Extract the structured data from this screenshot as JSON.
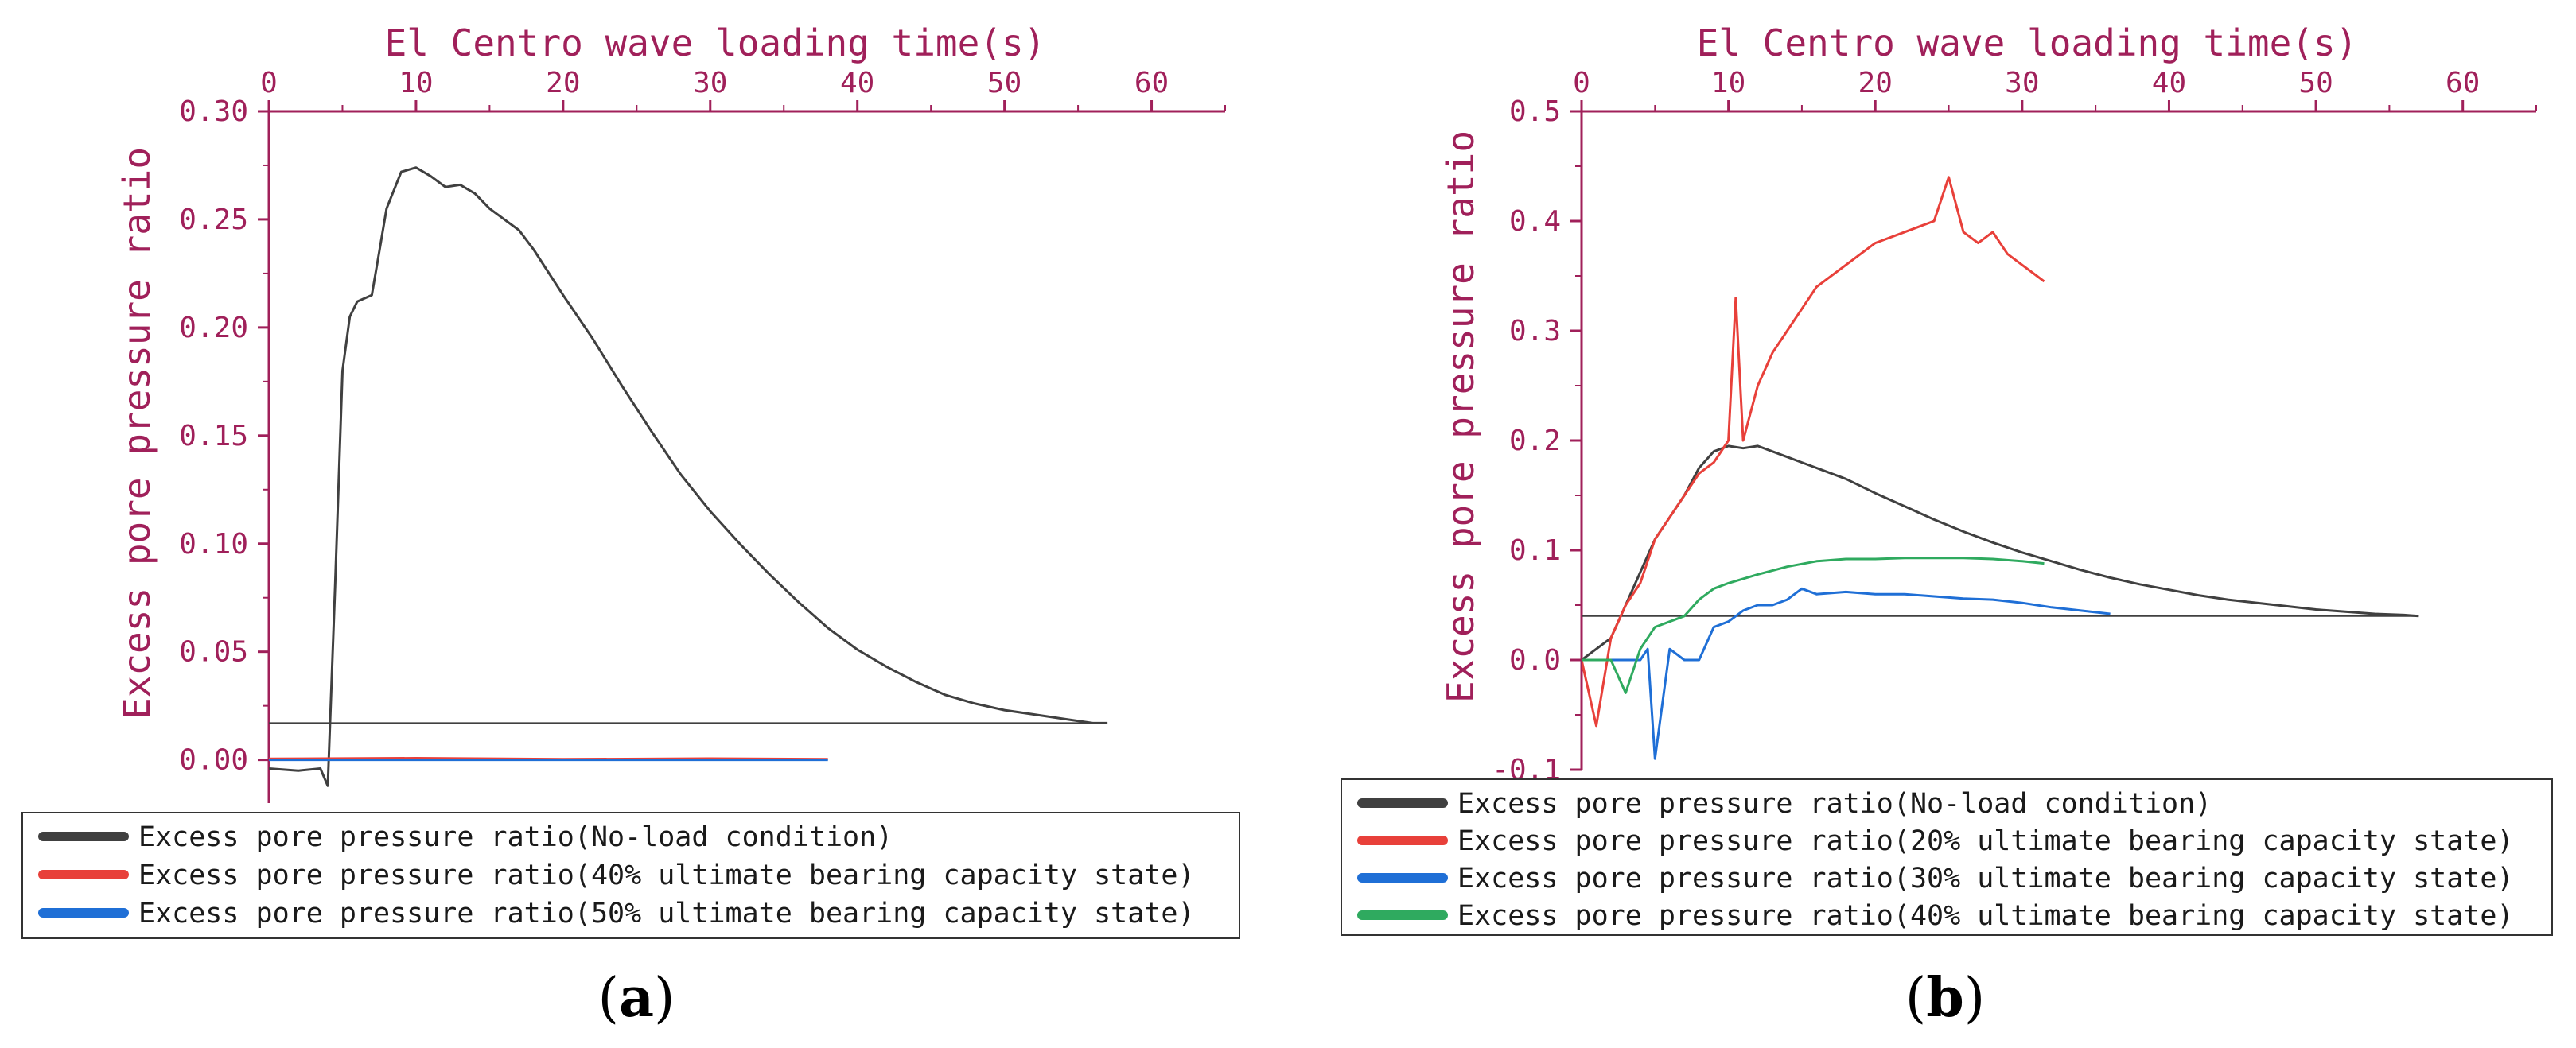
{
  "colors": {
    "axis": "#a0205a",
    "no_load": "#404040",
    "red": "#e8403a",
    "blue": "#1f6fd6",
    "green": "#2faa5f"
  },
  "chart_data": [
    {
      "panel_label": "(a)",
      "type": "line",
      "xlabel": "El Centro wave loading time(s)",
      "ylabel": "Excess pore pressure ratio",
      "xlim": [
        0,
        65
      ],
      "ylim": [
        -0.02,
        0.3
      ],
      "xticks": [
        "0",
        "10",
        "20",
        "30",
        "40",
        "50",
        "60"
      ],
      "yticks": [
        "0.00",
        "0.05",
        "0.10",
        "0.15",
        "0.20",
        "0.25",
        "0.30"
      ],
      "x_axis_position": "top",
      "legend_position": "bottom",
      "series": [
        {
          "name": "Excess pore pressure ratio(No-load condition)",
          "color_key": "no_load",
          "x": [
            0,
            2,
            3.5,
            4,
            4.5,
            5,
            5.5,
            6,
            7,
            7.5,
            8,
            9,
            10,
            11,
            12,
            13,
            14,
            15,
            16,
            17,
            18,
            20,
            22,
            24,
            26,
            28,
            30,
            32,
            34,
            36,
            38,
            40,
            42,
            44,
            46,
            48,
            50,
            52,
            54,
            56,
            57
          ],
          "y": [
            -0.004,
            -0.005,
            -0.004,
            -0.012,
            0.08,
            0.18,
            0.205,
            0.212,
            0.215,
            0.235,
            0.255,
            0.272,
            0.274,
            0.27,
            0.265,
            0.266,
            0.262,
            0.255,
            0.25,
            0.245,
            0.236,
            0.215,
            0.195,
            0.173,
            0.152,
            0.132,
            0.115,
            0.1,
            0.086,
            0.073,
            0.061,
            0.051,
            0.043,
            0.036,
            0.03,
            0.026,
            0.023,
            0.021,
            0.019,
            0.017,
            0.017
          ]
        },
        {
          "name": "Excess pore pressure ratio(40% ultimate bearing capacity state)",
          "color_key": "red",
          "x": [
            0,
            10,
            20,
            30,
            38
          ],
          "y": [
            0.0005,
            0.0008,
            0.0003,
            0.0006,
            0.0003
          ]
        },
        {
          "name": "Excess pore pressure ratio(50% ultimate bearing capacity state)",
          "color_key": "blue",
          "x": [
            0,
            10,
            20,
            30,
            38
          ],
          "y": [
            0.0,
            0.0,
            0.0,
            0.0,
            0.0
          ]
        }
      ],
      "reference_lines": [
        {
          "x": [
            0,
            57
          ],
          "y": [
            0.017,
            0.017
          ],
          "color_key": "no_load"
        }
      ]
    },
    {
      "panel_label": "(b)",
      "type": "line",
      "xlabel": "El Centro wave loading time(s)",
      "ylabel": "Excess pore pressure ratio",
      "xlim": [
        0,
        65
      ],
      "ylim": [
        -0.1,
        0.5
      ],
      "xticks": [
        "0",
        "10",
        "20",
        "30",
        "40",
        "50",
        "60"
      ],
      "yticks": [
        "-0.1",
        "0.0",
        "0.1",
        "0.2",
        "0.3",
        "0.4",
        "0.5"
      ],
      "x_axis_position": "top",
      "legend_position": "bottom",
      "series": [
        {
          "name": "Excess pore pressure ratio(No-load condition)",
          "color_key": "no_load",
          "x": [
            0,
            2,
            3,
            4,
            5,
            6,
            7,
            8,
            9,
            10,
            11,
            12,
            13,
            14,
            15,
            16,
            18,
            20,
            22,
            24,
            26,
            28,
            30,
            32,
            34,
            36,
            38,
            40,
            42,
            44,
            46,
            48,
            50,
            52,
            54,
            56,
            57
          ],
          "y": [
            0.0,
            0.02,
            0.05,
            0.08,
            0.11,
            0.13,
            0.15,
            0.175,
            0.19,
            0.195,
            0.193,
            0.195,
            0.19,
            0.185,
            0.18,
            0.175,
            0.165,
            0.152,
            0.14,
            0.128,
            0.117,
            0.107,
            0.098,
            0.09,
            0.082,
            0.075,
            0.069,
            0.064,
            0.059,
            0.055,
            0.052,
            0.049,
            0.046,
            0.044,
            0.042,
            0.041,
            0.04
          ]
        },
        {
          "name": "Excess pore pressure ratio(20% ultimate bearing capacity state)",
          "color_key": "red",
          "x": [
            0,
            1,
            2,
            3,
            4,
            5,
            6,
            7,
            8,
            9,
            10,
            10.5,
            11,
            12,
            13,
            14,
            15,
            16,
            18,
            20,
            22,
            24,
            25,
            26,
            27,
            28,
            29,
            30,
            31,
            31.5
          ],
          "y": [
            0.0,
            -0.06,
            0.02,
            0.05,
            0.07,
            0.11,
            0.13,
            0.15,
            0.17,
            0.18,
            0.2,
            0.33,
            0.2,
            0.25,
            0.28,
            0.3,
            0.32,
            0.34,
            0.36,
            0.38,
            0.39,
            0.4,
            0.44,
            0.39,
            0.38,
            0.39,
            0.37,
            0.36,
            0.35,
            0.345
          ]
        },
        {
          "name": "Excess pore pressure ratio(30% ultimate bearing capacity state)",
          "color_key": "blue",
          "x": [
            0,
            2,
            3,
            4,
            4.5,
            5,
            6,
            7,
            8,
            9,
            10,
            11,
            12,
            13,
            14,
            15,
            16,
            18,
            20,
            22,
            24,
            26,
            28,
            30,
            32,
            34,
            36
          ],
          "y": [
            0.0,
            0.0,
            0.0,
            0.0,
            0.01,
            -0.09,
            0.01,
            0.0,
            0.0,
            0.03,
            0.035,
            0.045,
            0.05,
            0.05,
            0.055,
            0.065,
            0.06,
            0.062,
            0.06,
            0.06,
            0.058,
            0.056,
            0.055,
            0.052,
            0.048,
            0.045,
            0.042
          ]
        },
        {
          "name": "Excess pore pressure ratio(40% ultimate bearing capacity state)",
          "color_key": "green",
          "x": [
            0,
            1,
            2,
            3,
            4,
            5,
            6,
            7,
            8,
            9,
            10,
            12,
            14,
            16,
            18,
            20,
            22,
            24,
            26,
            28,
            30,
            31.5
          ],
          "y": [
            0.0,
            0.0,
            0.0,
            -0.03,
            0.01,
            0.03,
            0.035,
            0.04,
            0.055,
            0.065,
            0.07,
            0.078,
            0.085,
            0.09,
            0.092,
            0.092,
            0.093,
            0.093,
            0.093,
            0.092,
            0.09,
            0.088
          ]
        }
      ],
      "reference_lines": [
        {
          "x": [
            0,
            57
          ],
          "y": [
            0.04,
            0.04
          ],
          "color_key": "no_load"
        }
      ]
    }
  ]
}
